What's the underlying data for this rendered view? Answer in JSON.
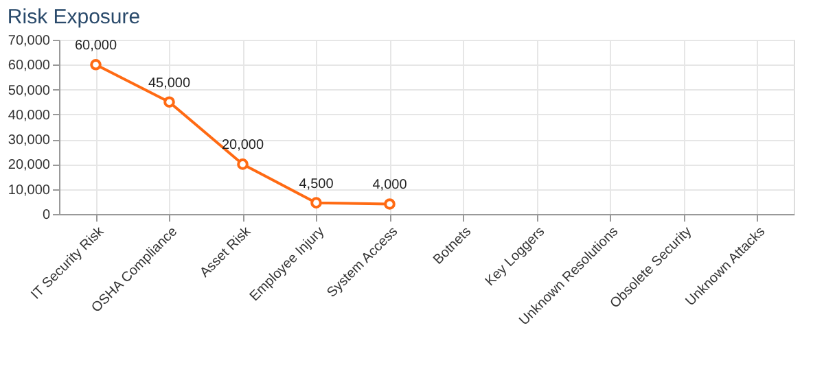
{
  "chart_data": {
    "type": "line",
    "title": "Risk Exposure",
    "categories": [
      "IT Security Risk",
      "OSHA Compliance",
      "Asset Risk",
      "Employee Injury",
      "System Access",
      "Botnets",
      "Key Loggers",
      "Unknown Resolutions",
      "Obsolete Security",
      "Unknown Attacks"
    ],
    "series": [
      {
        "color": "#ff6a13",
        "values": [
          60000,
          45000,
          20000,
          4500,
          4000,
          null,
          null,
          null,
          null,
          null
        ],
        "value_labels": [
          "60,000",
          "45,000",
          "20,000",
          "4,500",
          "4,000",
          null,
          null,
          null,
          null,
          null
        ]
      }
    ],
    "ylim": [
      0,
      70000
    ],
    "yticks": [
      {
        "value": 0,
        "label": "0"
      },
      {
        "value": 10000,
        "label": "10,000"
      },
      {
        "value": 20000,
        "label": "20,000"
      },
      {
        "value": 30000,
        "label": "30,000"
      },
      {
        "value": 40000,
        "label": "40,000"
      },
      {
        "value": 50000,
        "label": "50,000"
      },
      {
        "value": 60000,
        "label": "60,000"
      },
      {
        "value": 70000,
        "label": "70,000"
      }
    ],
    "grid": true,
    "marker": "circle"
  }
}
